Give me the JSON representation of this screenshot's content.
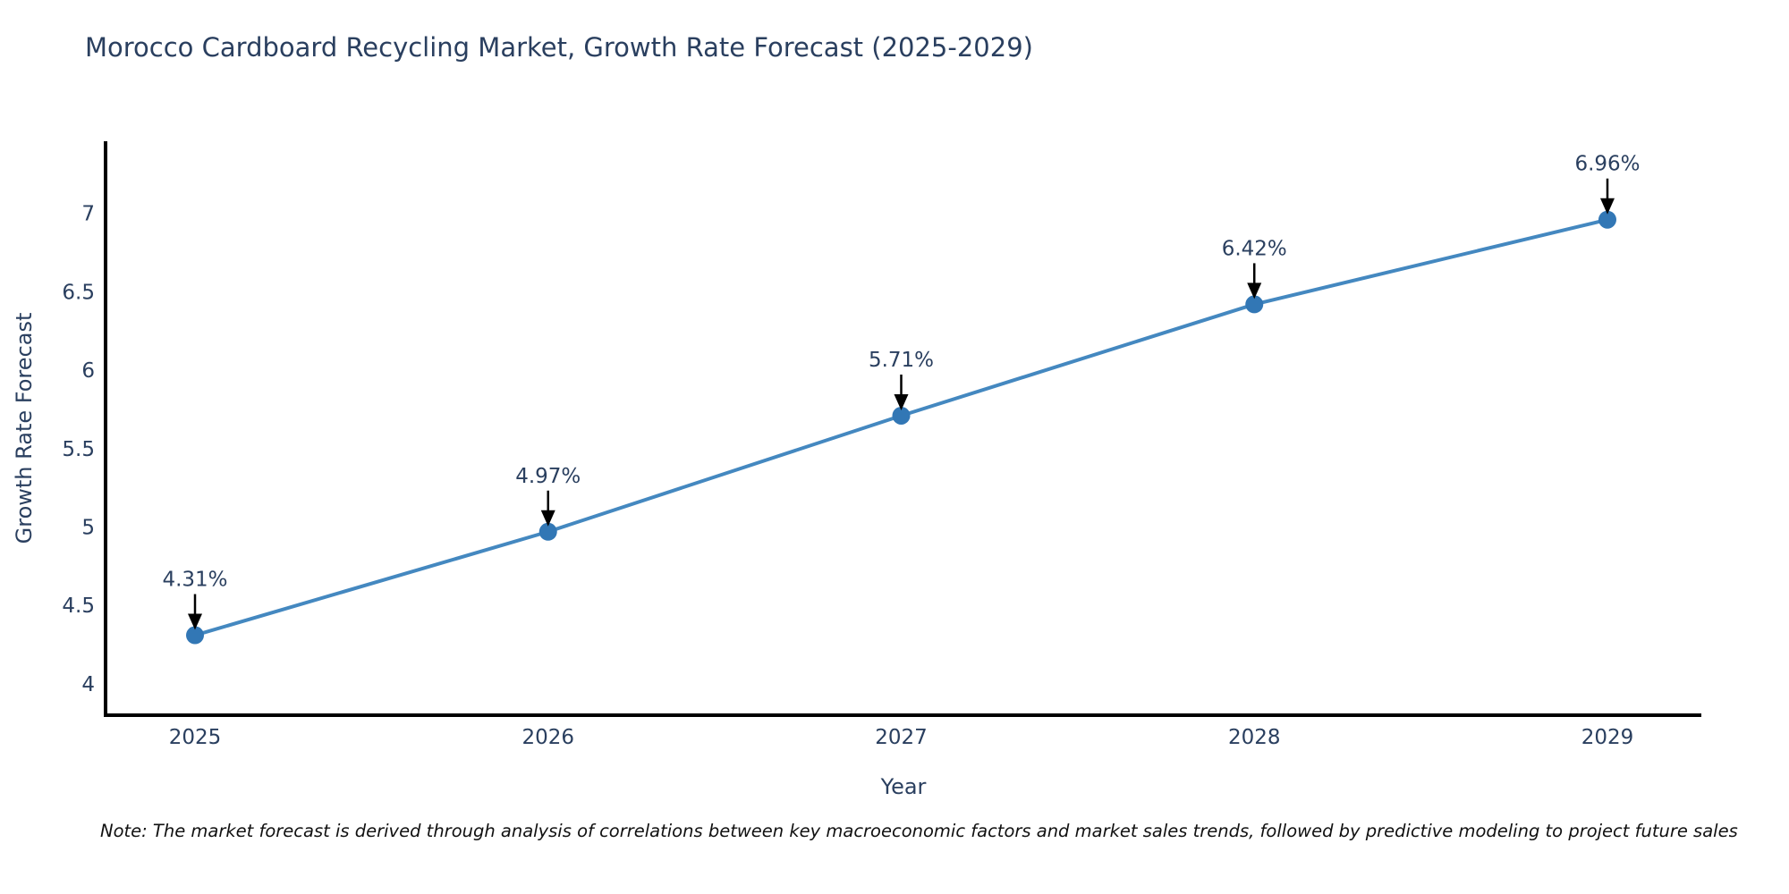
{
  "title": "Morocco Cardboard Recycling Market, Growth Rate Forecast (2025-2029)",
  "note": "Note: The market forecast is derived through analysis of correlations between key macroeconomic factors and market sales trends, followed by predictive modeling to project future sales",
  "chart_data": {
    "type": "line",
    "title": "Morocco Cardboard Recycling Market, Growth Rate Forecast (2025-2029)",
    "categories": [
      "2025",
      "2026",
      "2027",
      "2028",
      "2029"
    ],
    "values": [
      4.31,
      4.97,
      5.71,
      6.42,
      6.96
    ],
    "point_labels": [
      "4.31%",
      "4.97%",
      "5.71%",
      "6.42%",
      "6.96%"
    ],
    "xlabel": "Year",
    "ylabel": "Growth Rate Forecast",
    "yticks": [
      4,
      4.5,
      5,
      5.5,
      6,
      6.5,
      7
    ],
    "ylim": [
      3.8,
      7.46
    ],
    "grid": false,
    "legend_position": "none",
    "colors": {
      "line": "#4488c0",
      "marker": "#3277b5",
      "axis": "#000000",
      "tick_text": "#2a3f5f",
      "annotation_text": "#2a3f5f",
      "annotation_arrow": "#000000"
    }
  }
}
